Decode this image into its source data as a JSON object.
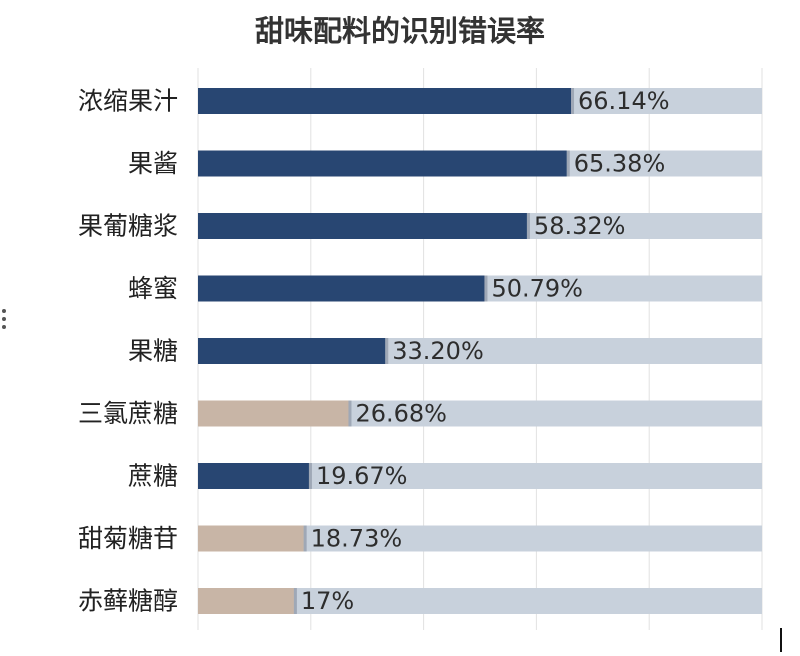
{
  "chart_data": {
    "type": "bar",
    "orientation": "horizontal",
    "title": "甜味配料的识别错误率",
    "categories": [
      "浓缩果汁",
      "果酱",
      "果葡糖浆",
      "蜂蜜",
      "果糖",
      "三氯蔗糖",
      "蔗糖",
      "甜菊糖苷",
      "赤藓糖醇"
    ],
    "values": [
      66.14,
      65.38,
      58.32,
      50.79,
      33.2,
      26.68,
      19.67,
      18.73,
      17
    ],
    "value_labels": [
      "66.14%",
      "65.38%",
      "58.32%",
      "50.79%",
      "33.20%",
      "26.68%",
      "19.67%",
      "18.73%",
      "17%"
    ],
    "bar_kind": [
      "natural",
      "natural",
      "natural",
      "natural",
      "natural",
      "artificial",
      "natural",
      "artificial",
      "artificial"
    ],
    "xlim": [
      0,
      100
    ],
    "grid": true,
    "colors": {
      "natural": "#284672",
      "artificial": "#c8b5a6",
      "track": "#c8d1dc",
      "grid": "#e2e2e2"
    }
  }
}
